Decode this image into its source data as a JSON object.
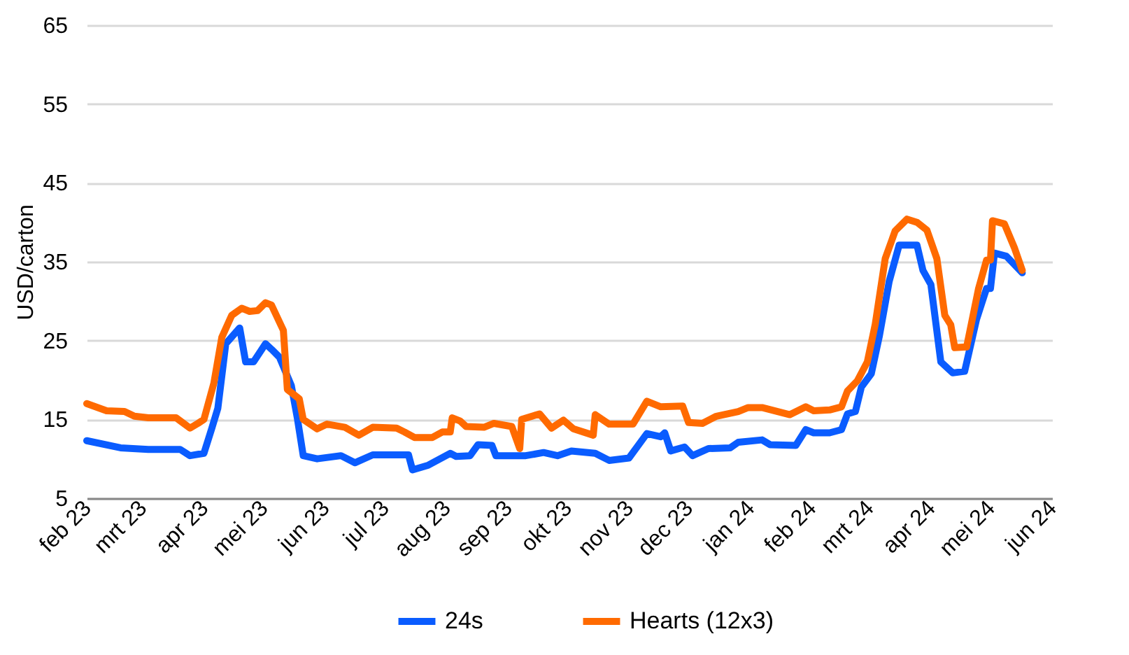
{
  "chart_data": {
    "type": "line",
    "ylabel": "USD/carton",
    "xlim": [
      "2023-02-01",
      "2024-06-01"
    ],
    "ylim": [
      5,
      65
    ],
    "yticks": [
      5,
      15,
      25,
      35,
      45,
      55,
      65
    ],
    "xticks": [
      {
        "value": "2023-02-01",
        "label": "feb 23"
      },
      {
        "value": "2023-03-01",
        "label": "mrt 23"
      },
      {
        "value": "2023-04-01",
        "label": "apr 23"
      },
      {
        "value": "2023-05-01",
        "label": "mei 23"
      },
      {
        "value": "2023-06-01",
        "label": "jun 23"
      },
      {
        "value": "2023-07-01",
        "label": "jul 23"
      },
      {
        "value": "2023-08-01",
        "label": "aug 23"
      },
      {
        "value": "2023-09-01",
        "label": "sep 23"
      },
      {
        "value": "2023-10-01",
        "label": "okt 23"
      },
      {
        "value": "2023-11-01",
        "label": "nov 23"
      },
      {
        "value": "2023-12-01",
        "label": "dec 23"
      },
      {
        "value": "2024-01-01",
        "label": "jan 24"
      },
      {
        "value": "2024-02-01",
        "label": "feb 24"
      },
      {
        "value": "2024-03-01",
        "label": "mrt 24"
      },
      {
        "value": "2024-04-01",
        "label": "apr 24"
      },
      {
        "value": "2024-05-01",
        "label": "mei 24"
      },
      {
        "value": "2024-06-01",
        "label": "jun 24"
      }
    ],
    "grid": "y",
    "legend": "bottom",
    "line_style": "solid",
    "marker": "none",
    "series": [
      {
        "name": "24s",
        "color": "#0a5cff",
        "x": [
          "2023-02-01",
          "2023-02-18",
          "2023-03-04",
          "2023-03-20",
          "2023-03-25",
          "2023-04-01",
          "2023-04-05",
          "2023-04-08",
          "2023-04-12",
          "2023-04-19",
          "2023-04-22",
          "2023-04-26",
          "2023-05-02",
          "2023-05-05",
          "2023-05-09",
          "2023-05-15",
          "2023-05-18",
          "2023-05-21",
          "2023-05-28",
          "2023-06-09",
          "2023-06-16",
          "2023-06-25",
          "2023-07-13",
          "2023-07-15",
          "2023-07-23",
          "2023-08-03",
          "2023-08-06",
          "2023-08-13",
          "2023-08-17",
          "2023-08-24",
          "2023-08-26",
          "2023-09-10",
          "2023-09-19",
          "2023-09-26",
          "2023-10-03",
          "2023-10-15",
          "2023-10-22",
          "2023-11-01",
          "2023-11-10",
          "2023-11-17",
          "2023-11-19",
          "2023-11-22",
          "2023-11-29",
          "2023-12-03",
          "2023-12-11",
          "2023-12-22",
          "2023-12-26",
          "2024-01-07",
          "2024-01-11",
          "2024-01-24",
          "2024-01-29",
          "2024-02-02",
          "2024-02-10",
          "2024-02-16",
          "2024-02-19",
          "2024-02-23",
          "2024-02-26",
          "2024-03-02",
          "2024-03-06",
          "2024-03-11",
          "2024-03-16",
          "2024-03-25",
          "2024-03-28",
          "2024-04-01",
          "2024-04-06",
          "2024-04-12",
          "2024-04-18",
          "2024-04-24",
          "2024-04-29",
          "2024-05-01",
          "2024-05-03",
          "2024-05-09",
          "2024-05-17"
        ],
        "values": [
          12.3,
          11.4,
          11.2,
          11.2,
          10.4,
          10.7,
          13.9,
          16.4,
          24.6,
          26.6,
          22.3,
          22.3,
          24.6,
          23.9,
          22.9,
          19.3,
          15.2,
          10.4,
          10.0,
          10.4,
          9.5,
          10.5,
          10.5,
          8.6,
          9.2,
          10.7,
          10.3,
          10.4,
          11.8,
          11.7,
          10.4,
          10.4,
          10.8,
          10.4,
          11.0,
          10.7,
          9.8,
          10.1,
          13.2,
          12.8,
          13.3,
          11.0,
          11.5,
          10.4,
          11.3,
          11.4,
          12.1,
          12.4,
          11.8,
          11.7,
          13.7,
          13.3,
          13.3,
          13.7,
          15.7,
          16.0,
          19.1,
          20.8,
          25.5,
          32.5,
          37.1,
          37.1,
          33.9,
          32.1,
          22.3,
          20.9,
          21.1,
          27.7,
          31.6,
          31.6,
          36.1,
          35.7,
          33.6
        ]
      },
      {
        "name": "Hearts (12x3)",
        "color": "#ff6a00",
        "x": [
          "2023-02-01",
          "2023-02-11",
          "2023-02-20",
          "2023-02-25",
          "2023-03-04",
          "2023-03-18",
          "2023-03-25",
          "2023-03-29",
          "2023-04-01",
          "2023-04-06",
          "2023-04-10",
          "2023-04-15",
          "2023-04-20",
          "2023-04-24",
          "2023-04-28",
          "2023-05-02",
          "2023-05-05",
          "2023-05-11",
          "2023-05-13",
          "2023-05-19",
          "2023-05-21",
          "2023-05-28",
          "2023-06-02",
          "2023-06-11",
          "2023-06-18",
          "2023-06-25",
          "2023-07-07",
          "2023-07-11",
          "2023-07-16",
          "2023-07-25",
          "2023-07-30",
          "2023-08-03",
          "2023-08-04",
          "2023-08-08",
          "2023-08-11",
          "2023-08-20",
          "2023-08-25",
          "2023-09-03",
          "2023-09-07",
          "2023-09-08",
          "2023-09-17",
          "2023-09-23",
          "2023-09-29",
          "2023-10-04",
          "2023-10-14",
          "2023-10-15",
          "2023-10-22",
          "2023-11-03",
          "2023-11-10",
          "2023-11-17",
          "2023-11-28",
          "2023-12-01",
          "2023-12-08",
          "2023-12-15",
          "2023-12-26",
          "2023-12-31",
          "2024-01-07",
          "2024-01-21",
          "2024-01-29",
          "2024-02-02",
          "2024-02-10",
          "2024-02-16",
          "2024-02-19",
          "2024-02-24",
          "2024-02-29",
          "2024-03-04",
          "2024-03-09",
          "2024-03-14",
          "2024-03-20",
          "2024-03-25",
          "2024-03-30",
          "2024-04-04",
          "2024-04-08",
          "2024-04-11",
          "2024-04-13",
          "2024-04-19",
          "2024-04-25",
          "2024-04-29",
          "2024-05-01",
          "2024-05-02",
          "2024-05-08",
          "2024-05-13",
          "2024-05-17"
        ],
        "values": [
          17.0,
          16.1,
          16.0,
          15.4,
          15.2,
          15.2,
          13.9,
          14.5,
          15.0,
          19.6,
          25.4,
          28.2,
          29.1,
          28.7,
          28.8,
          29.8,
          29.5,
          26.3,
          18.8,
          17.6,
          15.0,
          13.8,
          14.4,
          14.0,
          13.0,
          14.0,
          13.9,
          13.4,
          12.7,
          12.7,
          13.4,
          13.4,
          15.2,
          14.8,
          14.1,
          14.0,
          14.5,
          14.1,
          11.3,
          15.0,
          15.7,
          13.9,
          14.9,
          13.8,
          13.0,
          15.6,
          14.4,
          14.4,
          17.3,
          16.6,
          16.7,
          14.6,
          14.5,
          15.4,
          16.0,
          16.5,
          16.5,
          15.6,
          16.6,
          16.1,
          16.2,
          16.6,
          18.6,
          19.9,
          22.3,
          27.1,
          35.4,
          38.9,
          40.4,
          40.0,
          39.0,
          35.4,
          28.2,
          27.0,
          24.1,
          24.2,
          31.6,
          35.2,
          35.2,
          40.2,
          39.8,
          36.8,
          33.9
        ]
      }
    ]
  }
}
